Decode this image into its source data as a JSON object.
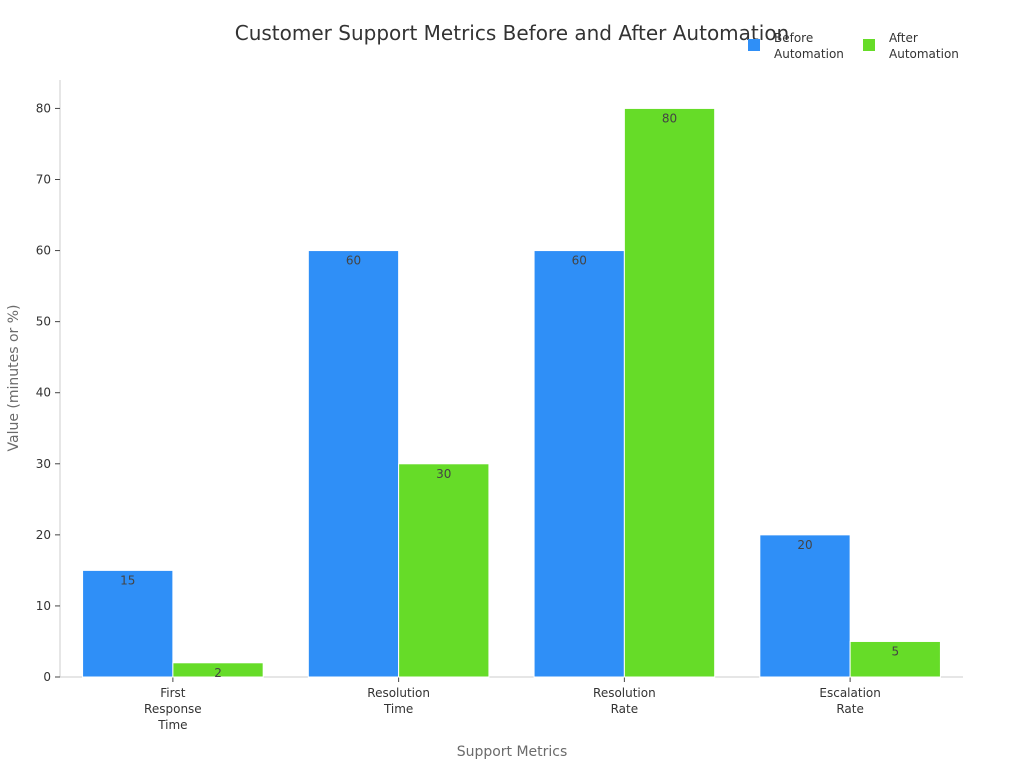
{
  "chart_data": {
    "type": "bar",
    "title": "Customer Support Metrics Before and After Automation",
    "xlabel": "Support Metrics",
    "ylabel": "Value (minutes or %)",
    "categories": [
      [
        "First",
        "Response",
        "Time"
      ],
      [
        "Resolution",
        "Time"
      ],
      [
        "Resolution",
        "Rate"
      ],
      [
        "Escalation",
        "Rate"
      ]
    ],
    "series": [
      {
        "name_lines": [
          "Before",
          "Automation"
        ],
        "color": "#2f8ff7",
        "values": [
          15,
          60,
          60,
          20
        ]
      },
      {
        "name_lines": [
          "After",
          "Automation"
        ],
        "color": "#66dc28",
        "values": [
          2,
          30,
          80,
          5
        ]
      }
    ],
    "ylim": [
      0,
      84
    ],
    "yticks": [
      0,
      10,
      20,
      30,
      40,
      50,
      60,
      70,
      80
    ],
    "grid": false,
    "legend_position": "top-right"
  }
}
